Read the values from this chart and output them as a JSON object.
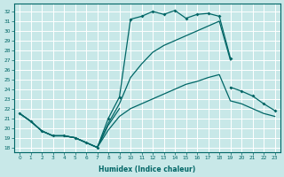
{
  "xlabel": "Humidex (Indice chaleur)",
  "background_color": "#c8e8e8",
  "grid_color": "#b0d8d8",
  "line_color": "#006666",
  "xlim": [
    -0.5,
    23.5
  ],
  "ylim": [
    17.5,
    32.8
  ],
  "yticks": [
    18,
    19,
    20,
    21,
    22,
    23,
    24,
    25,
    26,
    27,
    28,
    29,
    30,
    31,
    32
  ],
  "xticks": [
    0,
    1,
    2,
    3,
    4,
    5,
    6,
    7,
    8,
    9,
    10,
    11,
    12,
    13,
    14,
    15,
    16,
    17,
    18,
    19,
    20,
    21,
    22,
    23
  ],
  "line1_x": [
    0,
    1,
    2,
    3,
    4,
    5,
    6,
    7,
    8,
    9,
    10,
    11,
    12,
    13,
    14,
    15,
    16,
    17,
    18,
    19
  ],
  "line1_y": [
    21.5,
    20.7,
    19.7,
    19.2,
    19.2,
    19.0,
    18.5,
    18.0,
    21.0,
    23.2,
    31.2,
    31.5,
    32.0,
    31.7,
    32.1,
    31.3,
    31.7,
    31.8,
    31.5,
    27.2
  ],
  "line2_x": [
    0,
    1,
    2,
    3,
    4,
    5,
    6,
    7,
    8,
    9,
    10,
    11,
    12,
    13,
    14,
    15,
    16,
    17,
    18,
    19
  ],
  "line2_y": [
    21.5,
    20.7,
    19.7,
    19.2,
    19.2,
    19.0,
    18.5,
    18.0,
    20.5,
    22.5,
    25.2,
    26.6,
    27.8,
    28.5,
    29.0,
    29.5,
    30.0,
    30.5,
    31.0,
    27.0
  ],
  "line3_x": [
    0,
    1,
    2,
    3,
    4,
    5,
    6,
    7,
    8,
    9,
    19,
    20,
    21,
    22,
    23
  ],
  "line3_y": [
    21.5,
    20.7,
    19.7,
    19.2,
    19.2,
    19.0,
    18.5,
    18.0,
    20.3,
    22.0,
    24.2,
    23.8,
    23.3,
    22.5,
    21.8
  ],
  "line4_x": [
    0,
    1,
    2,
    3,
    4,
    5,
    6,
    7,
    8,
    9,
    10,
    11,
    12,
    13,
    14,
    15,
    16,
    17,
    18,
    19,
    20,
    21,
    22,
    23
  ],
  "line4_y": [
    21.5,
    20.7,
    19.7,
    19.2,
    19.2,
    19.0,
    18.5,
    18.0,
    19.8,
    21.2,
    22.0,
    22.5,
    23.0,
    23.5,
    24.0,
    24.5,
    24.8,
    25.2,
    25.5,
    22.8,
    22.5,
    22.0,
    21.5,
    21.2
  ]
}
